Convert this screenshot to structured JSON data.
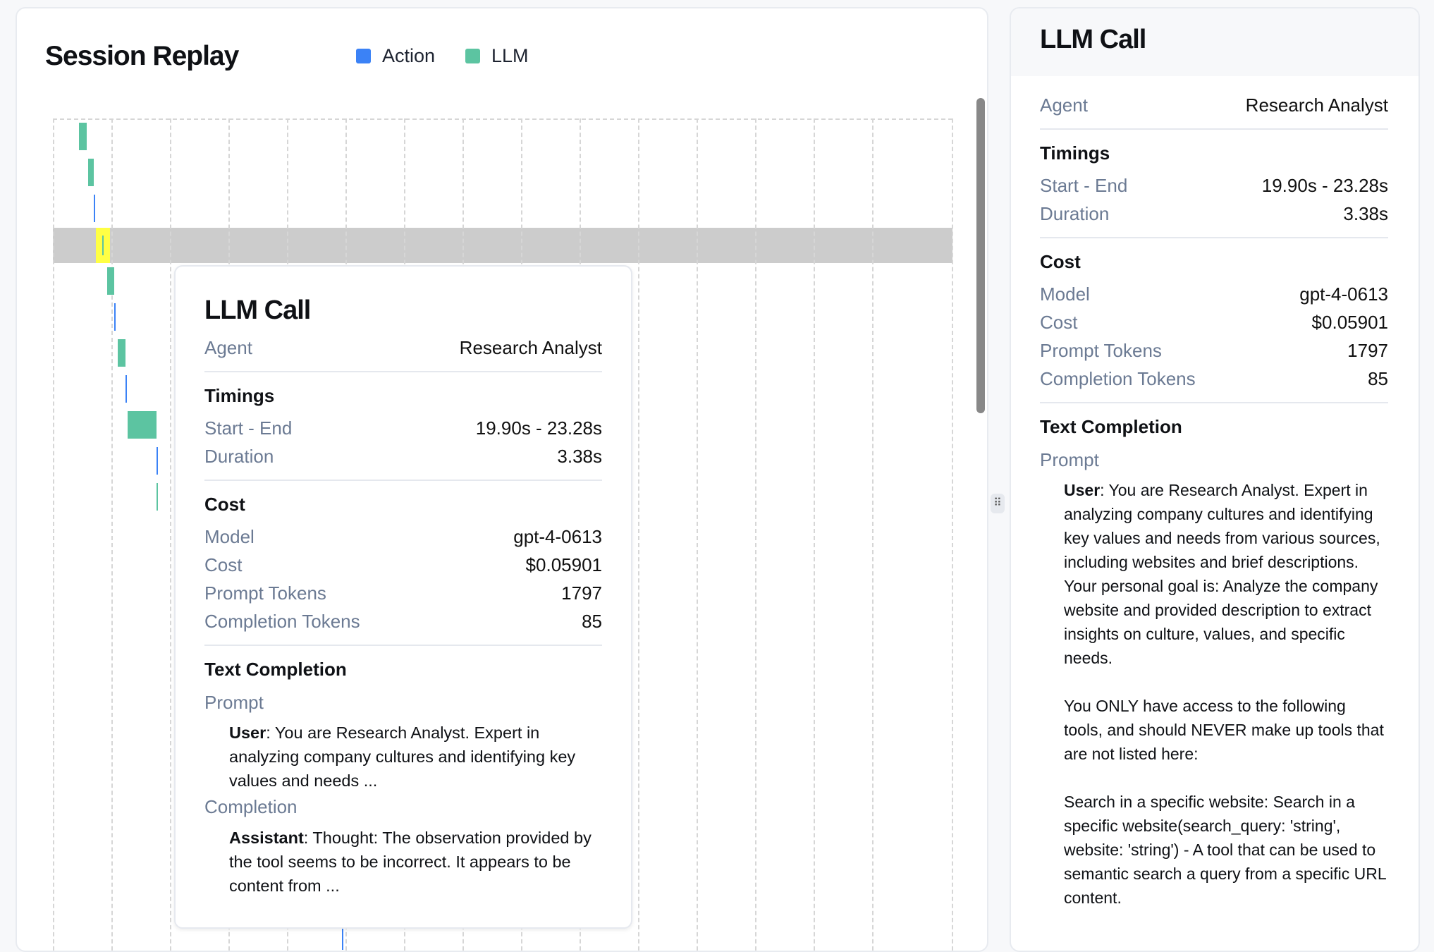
{
  "session_replay": {
    "title": "Session Replay",
    "legend": [
      {
        "label": "Action",
        "color": "#3b82f6"
      },
      {
        "label": "LLM",
        "color": "#5cc4a1"
      }
    ],
    "highlight_color": "#cccccc",
    "selected_color": "#ffff44",
    "timeline_rows": [
      "llm",
      "llm",
      "action",
      "llm-selected",
      "llm",
      "action",
      "llm",
      "action",
      "llm",
      "action",
      "llm"
    ]
  },
  "detail": {
    "title": "LLM Call",
    "agent_label": "Agent",
    "agent_value": "Research Analyst",
    "timings_title": "Timings",
    "start_end_label": "Start - End",
    "start_end_value": "19.90s - 23.28s",
    "duration_label": "Duration",
    "duration_value": "3.38s",
    "cost_title": "Cost",
    "model_label": "Model",
    "model_value": "gpt-4-0613",
    "cost_label": "Cost",
    "cost_value": "$0.05901",
    "prompt_tokens_label": "Prompt Tokens",
    "prompt_tokens_value": "1797",
    "completion_tokens_label": "Completion Tokens",
    "completion_tokens_value": "85",
    "text_completion_title": "Text Completion",
    "prompt_label": "Prompt",
    "completion_label": "Completion",
    "user_role": "User",
    "assistant_role": "Assistant",
    "prompt_full": ": You are Research Analyst. Expert in analyzing company cultures and identifying key values and needs from various sources, including websites and brief descriptions.\nYour personal goal is: Analyze the company website and provided description to extract insights on culture, values, and specific needs.\n\nYou ONLY have access to the following tools, and should NEVER make up tools that are not listed here:\n\nSearch in a specific website: Search in a specific website(search_query: 'string', website: 'string') - A tool that can be used to semantic search a query from a specific URL content.",
    "prompt_preview": ": You are Research Analyst. Expert in analyzing company cultures and identifying key values and needs ...",
    "completion_preview": ": Thought: The observation provided by the tool seems to be incorrect. It appears to be content from ..."
  }
}
